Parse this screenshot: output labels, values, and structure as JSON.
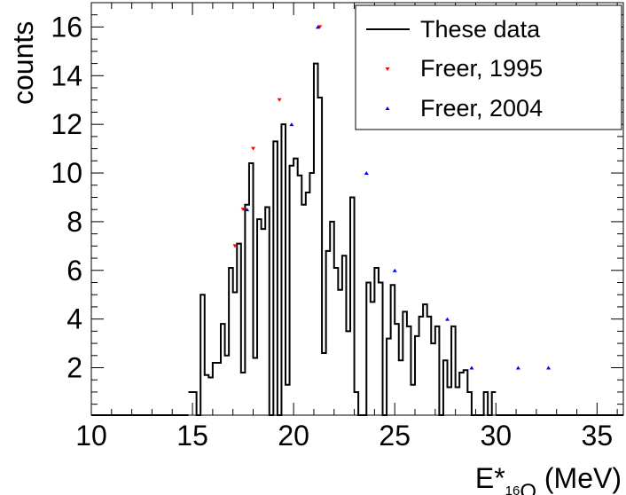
{
  "chart_data": {
    "type": "histogram",
    "xlabel": {
      "main": "E*",
      "sub_mass": "16",
      "sub_elem": "O",
      "unit": " (MeV)"
    },
    "ylabel": "counts",
    "xlim": [
      10,
      36.3
    ],
    "ylim": [
      0.05,
      17
    ],
    "x_ticks": [
      "10",
      "15",
      "20",
      "25",
      "30",
      "35"
    ],
    "y_ticks": [
      "2",
      "4",
      "6",
      "8",
      "10",
      "12",
      "14",
      "16"
    ],
    "legend": {
      "placement": "top-right",
      "entries": [
        "These data",
        "Freer, 1995",
        "Freer, 2004"
      ]
    },
    "series": [
      {
        "name": "These data",
        "kind": "step",
        "color": "#000000",
        "bin_start": 14.8,
        "bin_width": 0.2,
        "values": [
          1,
          1,
          0,
          5,
          1.7,
          1.6,
          2.2,
          2.2,
          3.8,
          2.5,
          6.1,
          5.1,
          7.1,
          1.8,
          8.7,
          10.4,
          2.4,
          8.1,
          7.7,
          8.6,
          0,
          11.3,
          0,
          12.0,
          1.3,
          10.3,
          10.6,
          9.9,
          8.7,
          9.2,
          10.0,
          14.5,
          13.1,
          2.6,
          6.8,
          8.0,
          6.1,
          5.2,
          6.6,
          3.5,
          9.0,
          1.0,
          0,
          0,
          5.5,
          4.7,
          6.1,
          5.5,
          0,
          3.2,
          5.4,
          3.8,
          2.3,
          4.3,
          3.7,
          1.3,
          3.3,
          4.1,
          4.6,
          4.1,
          3.0,
          3.7,
          0,
          2.3,
          1.2,
          3.7,
          1.2,
          1.8,
          1.9,
          1.0,
          0,
          0,
          0,
          1.0,
          0,
          1.0
        ]
      },
      {
        "name": "Freer, 1995",
        "kind": "markers",
        "marker": "triangle-down",
        "color": "#ff0000",
        "x": [
          17.1,
          17.5,
          18.0,
          19.3,
          21.3
        ],
        "y": [
          7.0,
          8.5,
          11.0,
          13.0,
          16.0
        ]
      },
      {
        "name": "Freer, 2004",
        "kind": "markers",
        "marker": "triangle-up",
        "color": "#0000ff",
        "x": [
          17.7,
          19.9,
          21.2,
          23.6,
          25.0,
          27.6,
          28.8,
          31.1,
          32.6
        ],
        "y": [
          8.5,
          12.0,
          16.0,
          10.0,
          6.0,
          4.0,
          2.0,
          2.0,
          2.0
        ]
      }
    ]
  }
}
